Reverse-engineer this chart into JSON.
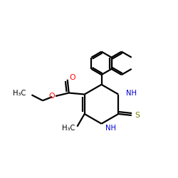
{
  "bg_color": "#ffffff",
  "bond_color": "#000000",
  "nh_color": "#0000cd",
  "o_color": "#ff0000",
  "s_color": "#808000",
  "line_width": 1.6,
  "figsize": [
    2.5,
    2.5
  ],
  "dpi": 100,
  "xlim": [
    0,
    10
  ],
  "ylim": [
    0,
    10
  ]
}
